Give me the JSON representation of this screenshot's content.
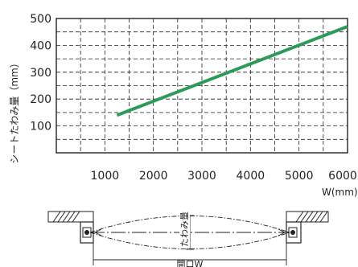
{
  "chart_data": {
    "type": "line",
    "title": "",
    "ylabel": "シートたわみ量（mm）",
    "xlabel": "W(mm)",
    "xlim": [
      0,
      6000
    ],
    "ylim": [
      0,
      500
    ],
    "x_ticks": [
      "1000",
      "2000",
      "3000",
      "4000",
      "5000",
      "6000"
    ],
    "y_ticks": [
      "100",
      "200",
      "300",
      "400",
      "500"
    ],
    "grid": true,
    "series": [
      {
        "color": "#2e9a58",
        "x": [
          1250,
          6000
        ],
        "y": [
          140,
          470
        ]
      }
    ]
  },
  "diagram": {
    "sag_label": "たわみ量",
    "opening_label": "開口W"
  }
}
